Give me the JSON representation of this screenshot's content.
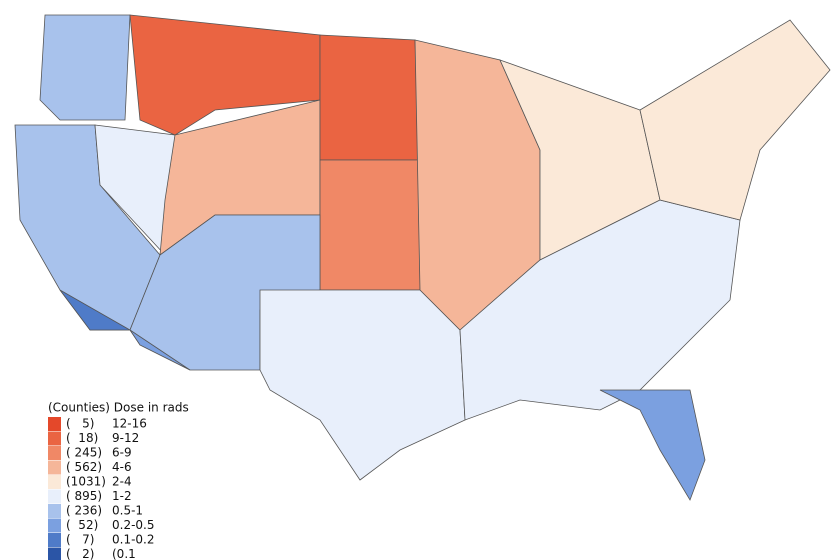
{
  "legend": {
    "title": "(Counties) Dose in rads",
    "entries": [
      {
        "count": "(   5)",
        "range": "12-16",
        "color": "#e4482a"
      },
      {
        "count": "(  18)",
        "range": "9-12",
        "color": "#ea6442"
      },
      {
        "count": "( 245)",
        "range": "6-9",
        "color": "#f08866"
      },
      {
        "count": "( 562)",
        "range": "4-6",
        "color": "#f5b699"
      },
      {
        "count": "(1031)",
        "range": "2-4",
        "color": "#fbe9d8"
      },
      {
        "count": "( 895)",
        "range": "1-2",
        "color": "#e8effb"
      },
      {
        "count": "( 236)",
        "range": "0.5-1",
        "color": "#a8c2ec"
      },
      {
        "count": "(  52)",
        "range": "0.2-0.5",
        "color": "#7ba0e0"
      },
      {
        "count": "(   7)",
        "range": "0.1-0.2",
        "color": "#4f7bc8"
      },
      {
        "count": "(   2)",
        "range": "(0.1",
        "color": "#2b55a6"
      }
    ]
  }
}
